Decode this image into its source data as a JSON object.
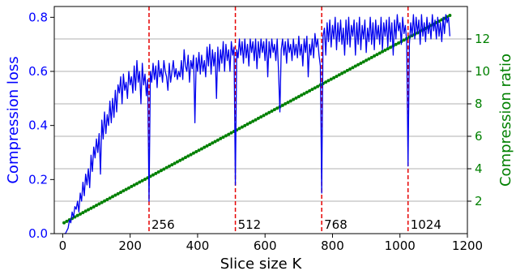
{
  "chart_data": {
    "type": "line",
    "xlabel": "Slice size K",
    "ylabel_left": "Compression loss",
    "ylabel_right": "Compression ratio",
    "xlim": [
      -25,
      1200
    ],
    "ylim_left": [
      0,
      0.84
    ],
    "ylim_right": [
      0,
      14.0
    ],
    "x_ticks": [
      0,
      200,
      400,
      600,
      800,
      1000,
      1200
    ],
    "y_ticks_left": [
      0.0,
      0.2,
      0.4,
      0.6,
      0.8
    ],
    "y_ticks_right": [
      2,
      4,
      6,
      8,
      10,
      12
    ],
    "grid": "horizontal-right-axis",
    "colors": {
      "loss": "#0000ee",
      "ratio": "#008000",
      "vline": "#e60000",
      "left_axis_text": "#0000ff",
      "right_axis_text": "#008000",
      "grid": "#b0b0b0"
    },
    "vertical_lines": [
      {
        "x": 256,
        "label": "256"
      },
      {
        "x": 512,
        "label": "512"
      },
      {
        "x": 768,
        "label": "768"
      },
      {
        "x": 1024,
        "label": "1024"
      }
    ],
    "series": [
      {
        "axis": "left",
        "points": [
          [
            4,
            0.0
          ],
          [
            8,
            0.0
          ],
          [
            12,
            0.01
          ],
          [
            16,
            0.02
          ],
          [
            20,
            0.05
          ],
          [
            24,
            0.04
          ],
          [
            28,
            0.08
          ],
          [
            32,
            0.06
          ],
          [
            36,
            0.1
          ],
          [
            40,
            0.09
          ],
          [
            44,
            0.12
          ],
          [
            48,
            0.08
          ],
          [
            52,
            0.15
          ],
          [
            56,
            0.12
          ],
          [
            60,
            0.19
          ],
          [
            64,
            0.14
          ],
          [
            68,
            0.22
          ],
          [
            72,
            0.18
          ],
          [
            76,
            0.24
          ],
          [
            80,
            0.17
          ],
          [
            84,
            0.29
          ],
          [
            88,
            0.23
          ],
          [
            92,
            0.32
          ],
          [
            96,
            0.28
          ],
          [
            100,
            0.35
          ],
          [
            104,
            0.3
          ],
          [
            108,
            0.37
          ],
          [
            112,
            0.22
          ],
          [
            116,
            0.42
          ],
          [
            120,
            0.35
          ],
          [
            124,
            0.45
          ],
          [
            128,
            0.37
          ],
          [
            132,
            0.44
          ],
          [
            136,
            0.4
          ],
          [
            140,
            0.49
          ],
          [
            144,
            0.41
          ],
          [
            148,
            0.5
          ],
          [
            152,
            0.43
          ],
          [
            156,
            0.53
          ],
          [
            160,
            0.45
          ],
          [
            164,
            0.55
          ],
          [
            168,
            0.52
          ],
          [
            172,
            0.58
          ],
          [
            176,
            0.48
          ],
          [
            180,
            0.59
          ],
          [
            184,
            0.53
          ],
          [
            188,
            0.56
          ],
          [
            192,
            0.5
          ],
          [
            196,
            0.6
          ],
          [
            200,
            0.55
          ],
          [
            204,
            0.58
          ],
          [
            208,
            0.52
          ],
          [
            212,
            0.62
          ],
          [
            216,
            0.53
          ],
          [
            220,
            0.64
          ],
          [
            224,
            0.56
          ],
          [
            228,
            0.6
          ],
          [
            232,
            0.48
          ],
          [
            236,
            0.63
          ],
          [
            240,
            0.55
          ],
          [
            244,
            0.59
          ],
          [
            248,
            0.51
          ],
          [
            252,
            0.57
          ],
          [
            256,
            0.12
          ],
          [
            260,
            0.6
          ],
          [
            264,
            0.56
          ],
          [
            268,
            0.63
          ],
          [
            272,
            0.57
          ],
          [
            276,
            0.62
          ],
          [
            280,
            0.54
          ],
          [
            284,
            0.64
          ],
          [
            288,
            0.58
          ],
          [
            292,
            0.61
          ],
          [
            296,
            0.56
          ],
          [
            300,
            0.64
          ],
          [
            304,
            0.6
          ],
          [
            308,
            0.58
          ],
          [
            312,
            0.53
          ],
          [
            316,
            0.63
          ],
          [
            320,
            0.56
          ],
          [
            324,
            0.6
          ],
          [
            328,
            0.64
          ],
          [
            332,
            0.58
          ],
          [
            336,
            0.61
          ],
          [
            340,
            0.57
          ],
          [
            344,
            0.6
          ],
          [
            348,
            0.58
          ],
          [
            352,
            0.64
          ],
          [
            356,
            0.57
          ],
          [
            360,
            0.68
          ],
          [
            364,
            0.62
          ],
          [
            368,
            0.6
          ],
          [
            372,
            0.66
          ],
          [
            376,
            0.56
          ],
          [
            380,
            0.64
          ],
          [
            384,
            0.61
          ],
          [
            388,
            0.66
          ],
          [
            392,
            0.41
          ],
          [
            396,
            0.65
          ],
          [
            400,
            0.6
          ],
          [
            404,
            0.67
          ],
          [
            408,
            0.59
          ],
          [
            412,
            0.66
          ],
          [
            416,
            0.6
          ],
          [
            420,
            0.64
          ],
          [
            424,
            0.58
          ],
          [
            428,
            0.69
          ],
          [
            432,
            0.62
          ],
          [
            436,
            0.7
          ],
          [
            440,
            0.59
          ],
          [
            444,
            0.68
          ],
          [
            448,
            0.62
          ],
          [
            452,
            0.67
          ],
          [
            456,
            0.5
          ],
          [
            460,
            0.69
          ],
          [
            464,
            0.6
          ],
          [
            468,
            0.68
          ],
          [
            472,
            0.63
          ],
          [
            476,
            0.71
          ],
          [
            480,
            0.6
          ],
          [
            484,
            0.7
          ],
          [
            488,
            0.64
          ],
          [
            492,
            0.68
          ],
          [
            496,
            0.6
          ],
          [
            500,
            0.71
          ],
          [
            504,
            0.66
          ],
          [
            508,
            0.69
          ],
          [
            512,
            0.18
          ],
          [
            516,
            0.68
          ],
          [
            520,
            0.65
          ],
          [
            524,
            0.72
          ],
          [
            528,
            0.66
          ],
          [
            532,
            0.71
          ],
          [
            536,
            0.63
          ],
          [
            540,
            0.72
          ],
          [
            544,
            0.65
          ],
          [
            548,
            0.7
          ],
          [
            552,
            0.62
          ],
          [
            556,
            0.72
          ],
          [
            560,
            0.67
          ],
          [
            564,
            0.71
          ],
          [
            568,
            0.64
          ],
          [
            572,
            0.72
          ],
          [
            576,
            0.61
          ],
          [
            580,
            0.71
          ],
          [
            584,
            0.65
          ],
          [
            588,
            0.72
          ],
          [
            592,
            0.67
          ],
          [
            596,
            0.71
          ],
          [
            600,
            0.64
          ],
          [
            604,
            0.72
          ],
          [
            608,
            0.58
          ],
          [
            612,
            0.71
          ],
          [
            616,
            0.65
          ],
          [
            620,
            0.72
          ],
          [
            624,
            0.67
          ],
          [
            628,
            0.7
          ],
          [
            632,
            0.64
          ],
          [
            636,
            0.72
          ],
          [
            640,
            0.6
          ],
          [
            644,
            0.45
          ],
          [
            648,
            0.68
          ],
          [
            652,
            0.72
          ],
          [
            656,
            0.66
          ],
          [
            660,
            0.71
          ],
          [
            664,
            0.63
          ],
          [
            668,
            0.72
          ],
          [
            672,
            0.67
          ],
          [
            676,
            0.7
          ],
          [
            680,
            0.64
          ],
          [
            684,
            0.72
          ],
          [
            688,
            0.66
          ],
          [
            692,
            0.7
          ],
          [
            696,
            0.65
          ],
          [
            700,
            0.73
          ],
          [
            704,
            0.66
          ],
          [
            708,
            0.7
          ],
          [
            712,
            0.62
          ],
          [
            716,
            0.72
          ],
          [
            720,
            0.67
          ],
          [
            724,
            0.73
          ],
          [
            728,
            0.58
          ],
          [
            732,
            0.7
          ],
          [
            736,
            0.66
          ],
          [
            740,
            0.72
          ],
          [
            744,
            0.65
          ],
          [
            748,
            0.74
          ],
          [
            752,
            0.69
          ],
          [
            756,
            0.72
          ],
          [
            760,
            0.66
          ],
          [
            764,
            0.62
          ],
          [
            768,
            0.15
          ],
          [
            772,
            0.73
          ],
          [
            776,
            0.76
          ],
          [
            780,
            0.66
          ],
          [
            784,
            0.78
          ],
          [
            788,
            0.71
          ],
          [
            792,
            0.79
          ],
          [
            796,
            0.69
          ],
          [
            800,
            0.77
          ],
          [
            804,
            0.72
          ],
          [
            808,
            0.8
          ],
          [
            812,
            0.68
          ],
          [
            816,
            0.78
          ],
          [
            820,
            0.71
          ],
          [
            824,
            0.79
          ],
          [
            828,
            0.7
          ],
          [
            832,
            0.76
          ],
          [
            836,
            0.66
          ],
          [
            840,
            0.79
          ],
          [
            844,
            0.7
          ],
          [
            848,
            0.8
          ],
          [
            852,
            0.69
          ],
          [
            856,
            0.77
          ],
          [
            860,
            0.73
          ],
          [
            864,
            0.79
          ],
          [
            868,
            0.66
          ],
          [
            872,
            0.78
          ],
          [
            876,
            0.7
          ],
          [
            880,
            0.8
          ],
          [
            884,
            0.68
          ],
          [
            888,
            0.77
          ],
          [
            892,
            0.72
          ],
          [
            896,
            0.79
          ],
          [
            900,
            0.67
          ],
          [
            904,
            0.76
          ],
          [
            908,
            0.71
          ],
          [
            912,
            0.8
          ],
          [
            916,
            0.7
          ],
          [
            920,
            0.78
          ],
          [
            924,
            0.68
          ],
          [
            928,
            0.79
          ],
          [
            932,
            0.72
          ],
          [
            936,
            0.77
          ],
          [
            940,
            0.7
          ],
          [
            944,
            0.8
          ],
          [
            948,
            0.68
          ],
          [
            952,
            0.78
          ],
          [
            956,
            0.73
          ],
          [
            960,
            0.79
          ],
          [
            964,
            0.69
          ],
          [
            968,
            0.8
          ],
          [
            972,
            0.71
          ],
          [
            976,
            0.78
          ],
          [
            980,
            0.66
          ],
          [
            984,
            0.79
          ],
          [
            988,
            0.72
          ],
          [
            992,
            0.81
          ],
          [
            996,
            0.75
          ],
          [
            1000,
            0.78
          ],
          [
            1004,
            0.7
          ],
          [
            1008,
            0.8
          ],
          [
            1012,
            0.74
          ],
          [
            1016,
            0.77
          ],
          [
            1020,
            0.71
          ],
          [
            1024,
            0.25
          ],
          [
            1028,
            0.7
          ],
          [
            1032,
            0.78
          ],
          [
            1036,
            0.73
          ],
          [
            1040,
            0.81
          ],
          [
            1044,
            0.72
          ],
          [
            1048,
            0.8
          ],
          [
            1052,
            0.74
          ],
          [
            1056,
            0.79
          ],
          [
            1060,
            0.7
          ],
          [
            1064,
            0.81
          ],
          [
            1068,
            0.73
          ],
          [
            1072,
            0.78
          ],
          [
            1076,
            0.71
          ],
          [
            1080,
            0.8
          ],
          [
            1084,
            0.74
          ],
          [
            1088,
            0.78
          ],
          [
            1092,
            0.72
          ],
          [
            1096,
            0.81
          ],
          [
            1100,
            0.75
          ],
          [
            1104,
            0.79
          ],
          [
            1108,
            0.72
          ],
          [
            1112,
            0.8
          ],
          [
            1116,
            0.73
          ],
          [
            1120,
            0.78
          ],
          [
            1124,
            0.71
          ],
          [
            1128,
            0.8
          ],
          [
            1132,
            0.74
          ],
          [
            1136,
            0.81
          ],
          [
            1140,
            0.78
          ],
          [
            1144,
            0.8
          ],
          [
            1148,
            0.73
          ]
        ]
      },
      {
        "axis": "right",
        "x_start": 4,
        "x_step": 8,
        "count": 144,
        "y_start": 0.67,
        "y_end": 13.45
      }
    ]
  }
}
